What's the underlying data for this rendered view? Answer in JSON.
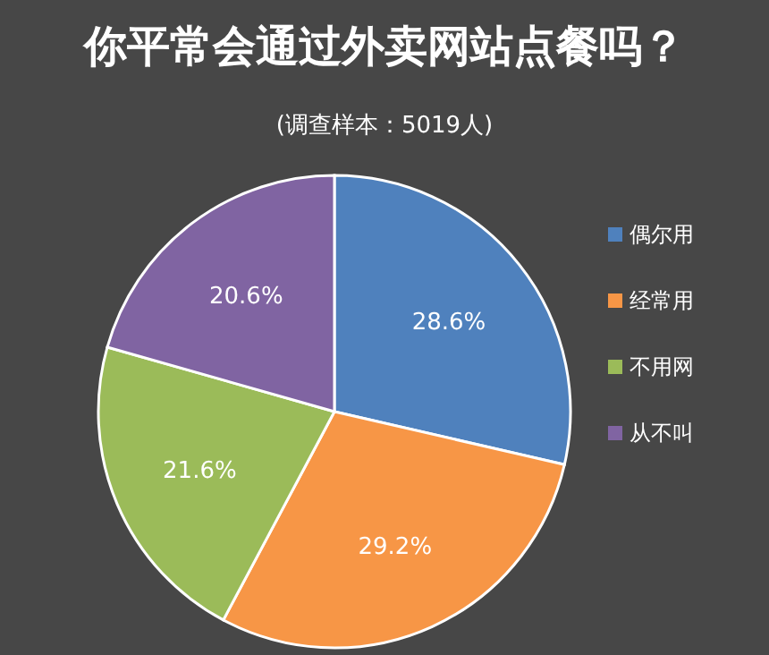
{
  "chart_data": {
    "type": "pie",
    "title": "你平常会通过外卖网站点餐吗？",
    "subtitle": "(调查样本：5019人)",
    "categories": [
      "偶尔用",
      "经常用",
      "不用网",
      "从不叫"
    ],
    "values": [
      28.6,
      29.2,
      21.6,
      20.6
    ],
    "colors": [
      "#4f81bd",
      "#f79646",
      "#9bbb59",
      "#8064a2"
    ],
    "value_labels": [
      "28.6%",
      "29.2%",
      "21.6%",
      "20.6%"
    ],
    "legend": "right"
  }
}
